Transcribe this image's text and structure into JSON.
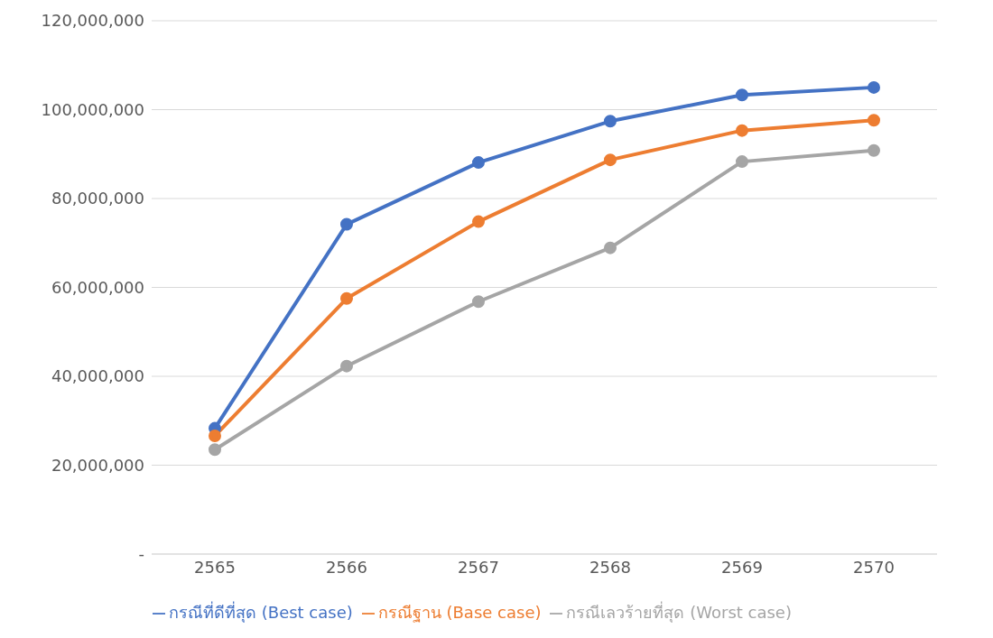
{
  "chart_data": {
    "type": "line",
    "categories": [
      "2565",
      "2566",
      "2567",
      "2568",
      "2569",
      "2570"
    ],
    "series": [
      {
        "name": "กรณีที่ดีที่สุด (Best case)",
        "color": "#4472c4",
        "values": [
          28300000,
          74200000,
          88100000,
          97400000,
          103300000,
          105000000
        ]
      },
      {
        "name": "กรณีฐาน (Base case)",
        "color": "#ed7d31",
        "values": [
          26600000,
          57500000,
          74800000,
          88700000,
          95300000,
          97600000
        ]
      },
      {
        "name": "กรณีเลวร้ายที่สุด (Worst case)",
        "color": "#a5a5a5",
        "values": [
          23500000,
          42300000,
          56800000,
          68900000,
          88300000,
          90800000
        ]
      }
    ],
    "ylim": [
      0,
      120000000
    ],
    "yticks": [
      {
        "value": 0,
        "label": "-"
      },
      {
        "value": 20000000,
        "label": "20,000,000"
      },
      {
        "value": 40000000,
        "label": "40,000,000"
      },
      {
        "value": 60000000,
        "label": "60,000,000"
      },
      {
        "value": 80000000,
        "label": "80,000,000"
      },
      {
        "value": 100000000,
        "label": "100,000,000"
      },
      {
        "value": 120000000,
        "label": "120,000,000"
      }
    ],
    "grid": "y",
    "legend": "bottom",
    "marker": "circle",
    "line_style": "solid"
  }
}
